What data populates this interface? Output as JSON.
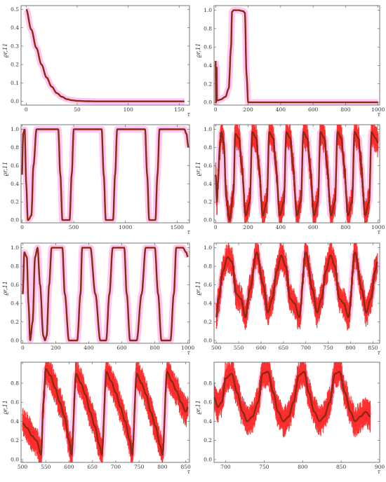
{
  "chart_data": [
    {
      "type": "line",
      "ylabel": "ϱr,11",
      "xlabel": "τ",
      "xlim": [
        -5,
        160
      ],
      "ylim": [
        -0.02,
        0.52
      ],
      "xticks": [
        0,
        50,
        100,
        150
      ],
      "yticks": [
        0.0,
        0.1,
        0.2,
        0.3,
        0.4,
        0.5
      ],
      "ytick_labels": [
        "0.0",
        "0.1",
        "0.2",
        "0.3",
        "0.4",
        "0.5"
      ],
      "series": [
        {
          "x": [
            0,
            5,
            10,
            15,
            20,
            25,
            30,
            35,
            40,
            45,
            50,
            60,
            70,
            80,
            100,
            120,
            140,
            155
          ],
          "y": [
            0.5,
            0.39,
            0.29,
            0.2,
            0.13,
            0.08,
            0.045,
            0.025,
            0.012,
            0.006,
            0.003,
            0.001,
            0.0,
            0.0,
            0.0,
            0.0,
            0.0,
            0.0
          ]
        }
      ]
    },
    {
      "type": "line",
      "ylabel": "ϱr,11",
      "xlabel": "τ",
      "xlim": [
        -10,
        1010
      ],
      "ylim": [
        -0.03,
        1.05
      ],
      "xticks": [
        0,
        200,
        400,
        600,
        800,
        1000
      ],
      "yticks": [
        0.0,
        0.2,
        0.4,
        0.6,
        0.8,
        1.0
      ],
      "ytick_labels": [
        "0.0",
        "0.2",
        "0.4",
        "0.6",
        "0.8",
        "1.0"
      ],
      "series": [
        {
          "x": [
            0,
            2,
            5,
            8,
            10,
            30,
            60,
            80,
            95,
            100,
            110,
            140,
            170,
            180,
            190,
            200,
            400,
            600,
            800,
            1000
          ],
          "y": [
            0.45,
            0.0,
            0.5,
            0.03,
            0.02,
            0.03,
            0.06,
            0.15,
            0.6,
            0.98,
            1.0,
            1.0,
            0.99,
            0.97,
            0.3,
            0.0,
            0.0,
            0.0,
            0.0,
            0.0
          ]
        }
      ]
    },
    {
      "type": "line",
      "ylabel": "ϱr,11",
      "xlabel": "τ",
      "xlim": [
        -10,
        1620
      ],
      "ylim": [
        -0.03,
        1.05
      ],
      "xticks": [
        0,
        500,
        1000,
        1500
      ],
      "yticks": [
        0.0,
        0.2,
        0.4,
        0.6,
        0.8,
        1.0
      ],
      "ytick_labels": [
        "0.0",
        "0.2",
        "0.4",
        "0.6",
        "0.8",
        "1.0"
      ],
      "series": [
        {
          "x": [
            0,
            10,
            25,
            40,
            55,
            60,
            90,
            110,
            140,
            350,
            370,
            390,
            420,
            460,
            480,
            500,
            520,
            770,
            790,
            810,
            860,
            880,
            900,
            920,
            940,
            1190,
            1210,
            1230,
            1270,
            1290,
            1310,
            1330,
            1350,
            1570,
            1590,
            1610
          ],
          "y": [
            0.5,
            0.95,
            1.0,
            0.4,
            0.0,
            0.0,
            0.05,
            0.6,
            1.0,
            1.0,
            0.5,
            0.0,
            0.0,
            0.0,
            0.5,
            1.0,
            1.0,
            1.0,
            0.5,
            0.0,
            0.0,
            0.0,
            0.5,
            1.0,
            1.0,
            1.0,
            0.5,
            0.0,
            0.0,
            0.0,
            0.5,
            1.0,
            1.0,
            1.0,
            0.95,
            0.8
          ]
        }
      ]
    },
    {
      "type": "line",
      "ylabel": "ϱr,11",
      "xlabel": "τ",
      "xlim": [
        -10,
        1010
      ],
      "ylim": [
        -0.03,
        1.05
      ],
      "xticks": [
        0,
        200,
        400,
        600,
        800,
        1000
      ],
      "yticks": [
        0.0,
        0.2,
        0.4,
        0.6,
        0.8,
        1.0
      ],
      "ytick_labels": [
        "0.0",
        "0.2",
        "0.4",
        "0.6",
        "0.8",
        "1.0"
      ],
      "series": [
        {
          "x": [
            0,
            8,
            15,
            25,
            35,
            50,
            65,
            85,
            110,
            120,
            145,
            160,
            185,
            210,
            225,
            250,
            265,
            290,
            315,
            330,
            355,
            370,
            395,
            420,
            435,
            460,
            475,
            500,
            525,
            540,
            565,
            580,
            605,
            630,
            645,
            670,
            685,
            710,
            735,
            750,
            775,
            790,
            815,
            840,
            855,
            880,
            895,
            920,
            945,
            960,
            985,
            1000
          ],
          "y": [
            0.5,
            0.2,
            0.45,
            0.8,
            0.97,
            0.85,
            0.25,
            0.0,
            0.3,
            0.95,
            0.9,
            0.6,
            0.05,
            0.2,
            0.97,
            0.9,
            0.6,
            0.05,
            0.2,
            0.97,
            0.9,
            0.6,
            0.05,
            0.2,
            0.97,
            0.9,
            0.6,
            0.05,
            0.2,
            0.97,
            0.9,
            0.6,
            0.05,
            0.2,
            0.97,
            0.9,
            0.6,
            0.05,
            0.2,
            0.97,
            0.9,
            0.6,
            0.05,
            0.2,
            0.97,
            0.9,
            0.6,
            0.05,
            0.2,
            0.97,
            0.9,
            0.85
          ]
        }
      ]
    },
    {
      "type": "line",
      "ylabel": "ϱr,11",
      "xlabel": "τ",
      "xlim": [
        -10,
        1010
      ],
      "ylim": [
        -0.03,
        1.05
      ],
      "xticks": [
        0,
        200,
        400,
        600,
        800,
        1000
      ],
      "yticks": [
        0.0,
        0.2,
        0.4,
        0.6,
        0.8,
        1.0
      ],
      "ytick_labels": [
        "0.0",
        "0.2",
        "0.4",
        "0.6",
        "0.8",
        "1.0"
      ],
      "series": [
        {
          "x": [
            0,
            10,
            25,
            35,
            45,
            60,
            75,
            90,
            105,
            125,
            135,
            145,
            160,
            175,
            200,
            240,
            255,
            280,
            300,
            330,
            350,
            360,
            380,
            395,
            410,
            440,
            470,
            490,
            505,
            525,
            545,
            560,
            590,
            615,
            630,
            650,
            670,
            690,
            720,
            745,
            765,
            780,
            800,
            820,
            840,
            870,
            895,
            915,
            930,
            950,
            970,
            990,
            1000
          ],
          "y": [
            0.5,
            0.95,
            0.9,
            0.4,
            0.0,
            0.2,
            0.9,
            1.0,
            0.6,
            0.05,
            0.0,
            0.05,
            0.6,
            1.0,
            1.0,
            1.0,
            0.5,
            0.0,
            0.0,
            0.0,
            0.5,
            1.0,
            1.0,
            1.0,
            1.0,
            0.5,
            0.0,
            0.0,
            0.0,
            0.5,
            1.0,
            1.0,
            1.0,
            1.0,
            0.5,
            0.0,
            0.0,
            0.0,
            0.5,
            1.0,
            1.0,
            1.0,
            1.0,
            0.5,
            0.0,
            0.0,
            0.0,
            0.5,
            1.0,
            1.0,
            1.0,
            0.95,
            0.9
          ]
        }
      ]
    },
    {
      "type": "line",
      "ylabel": "ϱr,11",
      "xlabel": "τ",
      "xlim": [
        495,
        865
      ],
      "ylim": [
        -0.03,
        1.05
      ],
      "xticks": [
        500,
        550,
        600,
        650,
        700,
        750,
        800,
        850
      ],
      "yticks": [
        0.0,
        0.2,
        0.4,
        0.6,
        0.8,
        1.0
      ],
      "ytick_labels": [
        "0.0",
        "0.2",
        "0.4",
        "0.6",
        "0.8",
        "1.0"
      ],
      "series": [
        {
          "x": [
            500,
            505,
            515,
            525,
            535,
            545,
            555,
            565,
            575,
            590,
            605,
            615,
            625,
            635,
            645,
            655,
            665,
            675,
            685,
            700,
            715,
            725,
            735,
            745,
            755,
            765,
            775,
            785,
            795,
            810,
            825,
            835,
            845,
            855,
            860
          ],
          "y": [
            0.25,
            0.45,
            0.75,
            0.9,
            0.85,
            0.5,
            0.45,
            0.25,
            0.55,
            0.95,
            0.6,
            0.3,
            0.45,
            0.75,
            0.92,
            0.8,
            0.45,
            0.4,
            0.25,
            0.95,
            0.55,
            0.3,
            0.45,
            0.75,
            0.92,
            0.8,
            0.45,
            0.4,
            0.25,
            0.95,
            0.55,
            0.3,
            0.45,
            0.75,
            0.85
          ]
        }
      ]
    },
    {
      "type": "line",
      "ylabel": "ϱr,11",
      "xlabel": "τ",
      "xlim": [
        497,
        858
      ],
      "ylim": [
        -0.03,
        1.02
      ],
      "xticks": [
        500,
        550,
        600,
        650,
        700,
        750,
        800,
        850
      ],
      "yticks": [
        0.0,
        0.2,
        0.4,
        0.6,
        0.8
      ],
      "ytick_labels": [
        "0.0",
        "0.2",
        "0.4",
        "0.6",
        "0.8"
      ],
      "series": [
        {
          "x": [
            500,
            510,
            520,
            530,
            540,
            545,
            550,
            560,
            570,
            580,
            590,
            600,
            605,
            615,
            625,
            635,
            645,
            655,
            665,
            670,
            680,
            690,
            700,
            710,
            720,
            730,
            735,
            745,
            755,
            765,
            775,
            785,
            795,
            800,
            810,
            820,
            830,
            840,
            850,
            855
          ],
          "y": [
            0.38,
            0.33,
            0.25,
            0.2,
            0.05,
            0.6,
            0.95,
            0.88,
            0.75,
            0.6,
            0.45,
            0.2,
            0.05,
            0.9,
            0.8,
            0.68,
            0.5,
            0.35,
            0.15,
            0.05,
            0.92,
            0.82,
            0.7,
            0.55,
            0.4,
            0.2,
            0.05,
            0.9,
            0.8,
            0.68,
            0.5,
            0.35,
            0.15,
            0.05,
            0.92,
            0.82,
            0.72,
            0.6,
            0.5,
            0.55
          ]
        }
      ]
    },
    {
      "type": "line",
      "ylabel": "ϱr,11",
      "xlabel": "τ",
      "xlim": [
        685,
        900
      ],
      "ylim": [
        -0.03,
        1.02
      ],
      "xticks": [
        700,
        750,
        800,
        850,
        900
      ],
      "yticks": [
        0.0,
        0.2,
        0.4,
        0.6,
        0.8
      ],
      "ytick_labels": [
        "0.0",
        "0.2",
        "0.4",
        "0.6",
        "0.8"
      ],
      "series": [
        {
          "x": [
            685,
            690,
            695,
            700,
            708,
            715,
            722,
            728,
            735,
            742,
            748,
            755,
            762,
            768,
            775,
            782,
            788,
            795,
            802,
            808,
            815,
            822,
            828,
            835,
            842,
            848,
            855,
            862,
            868,
            875,
            882,
            888
          ],
          "y": [
            0.65,
            0.55,
            0.6,
            0.85,
            0.9,
            0.7,
            0.5,
            0.4,
            0.45,
            0.6,
            0.9,
            0.92,
            0.7,
            0.5,
            0.4,
            0.45,
            0.6,
            0.88,
            0.92,
            0.7,
            0.5,
            0.4,
            0.45,
            0.6,
            0.9,
            0.92,
            0.7,
            0.5,
            0.4,
            0.45,
            0.5,
            0.45
          ]
        }
      ]
    }
  ],
  "style": {
    "line_color": "#8b2a10",
    "fill_color": "#ff1a1a",
    "halo_color": "#ff5cd6",
    "axis_color": "#555555"
  },
  "panels": [
    {
      "id": "a",
      "noisy": false,
      "halo": true
    },
    {
      "id": "b",
      "noisy": false,
      "halo": true
    },
    {
      "id": "c",
      "noisy": false,
      "halo": true
    },
    {
      "id": "d",
      "noisy": true,
      "halo": true
    },
    {
      "id": "e",
      "noisy": false,
      "halo": true
    },
    {
      "id": "f",
      "noisy": true,
      "halo": true
    },
    {
      "id": "g",
      "noisy": true,
      "halo": true
    },
    {
      "id": "h",
      "noisy": true,
      "halo": true
    }
  ]
}
